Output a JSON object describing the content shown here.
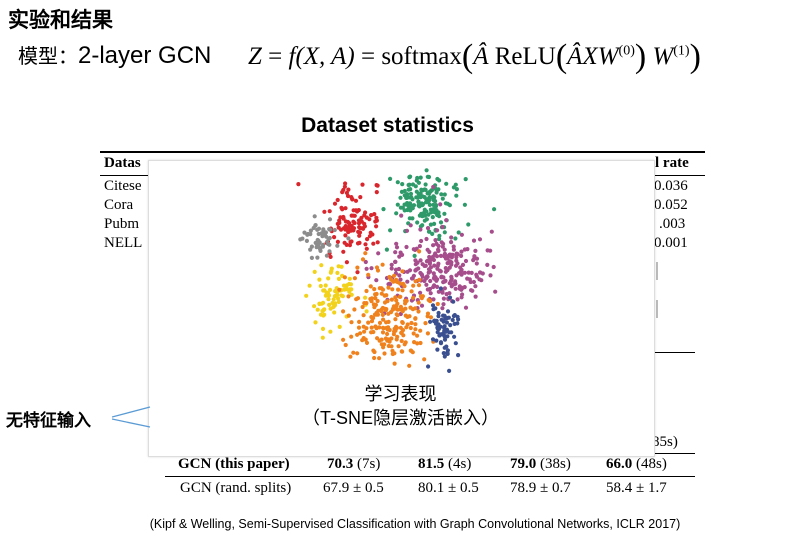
{
  "title": "实验和结果",
  "model": {
    "label": "模型：",
    "name": "2-layer GCN",
    "formula": {
      "lhs": "Z",
      "eq": " = ",
      "f": "f(X, A)",
      "eq2": " = ",
      "softmax": "softmax",
      "a_hat": "Â",
      "relu": "ReLU",
      "inner": "ÂXW",
      "w0_sup": "(0)",
      "w1": "W",
      "w1_sup": "(1)"
    }
  },
  "dataset_title": "Dataset statistics",
  "table": {
    "header_left": "Datas",
    "header_right": "l rate",
    "rows": [
      {
        "name": "Citese",
        "value": "0.036"
      },
      {
        "name": "Cora",
        "value": "0.052"
      },
      {
        "name": "Pubm",
        "value": ".003"
      },
      {
        "name": "NELL",
        "value": "0.001"
      }
    ],
    "fragment_85": "85s)",
    "results": [
      {
        "method": "GCN (this paper)",
        "c1": "70.3",
        "c1t": "(7s)",
        "c2": "81.5",
        "c2t": "(4s)",
        "c3": "79.0",
        "c3t": "(38s)",
        "c4": "66.0",
        "c4t": "(48s)",
        "bold": true
      },
      {
        "method": "GCN (rand. splits)",
        "c1": "67.9 ± 0.5",
        "c2": "80.1 ± 0.5",
        "c3": "78.9 ± 0.7",
        "c4": "58.4 ± 1.7",
        "bold": false
      }
    ]
  },
  "overlay": {
    "caption_line1": "学习表现",
    "caption_line2": "（T-SNE隐层激活嵌入）"
  },
  "side_label": "无特征输入",
  "citation": "(Kipf & Welling, Semi-Supervised Classification with Graph Convolutional Networks, ICLR 2017)",
  "colors": {
    "cluster_green": "#2e9a6a",
    "cluster_red": "#d9262d",
    "cluster_grey": "#8c8c8c",
    "cluster_purple": "#a64d8c",
    "cluster_yellow": "#f2d21b",
    "cluster_orange": "#f0821e",
    "cluster_blue": "#3a4f8f",
    "arrow": "#5b9bd5"
  }
}
